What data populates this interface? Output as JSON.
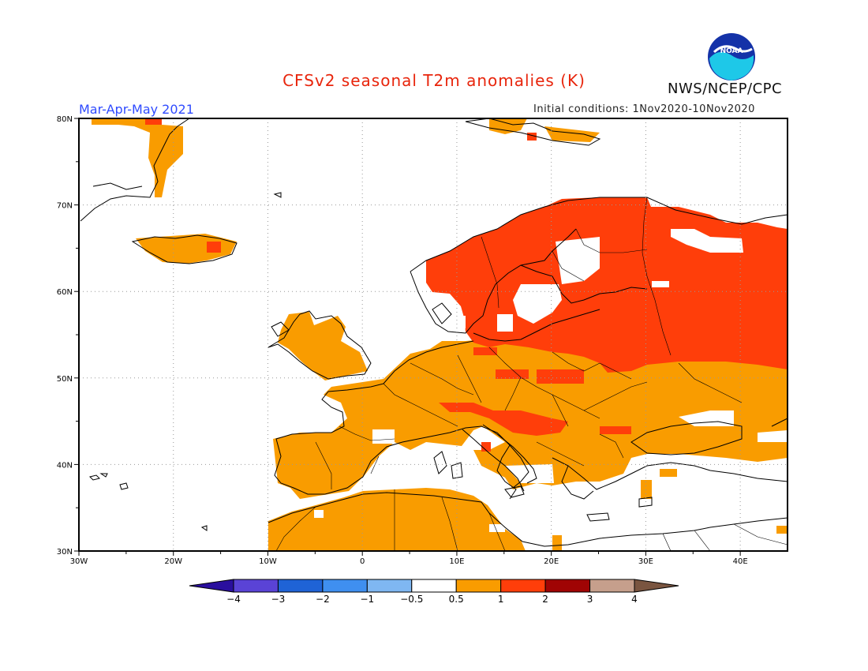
{
  "header": {
    "title": "CFSv2 seasonal T2m anomalies (K)",
    "season": "Mar-Apr-May 2021",
    "initial_conditions": "Initial conditions: 1Nov2020-10Nov2020",
    "agency": "NWS/NCEP/CPC",
    "logo_text": "NOAA"
  },
  "map": {
    "region": "Europe",
    "lon_range": [
      -30,
      45
    ],
    "lat_range": [
      30,
      80
    ],
    "lat_labels": [
      "80N",
      "70N",
      "60N",
      "50N",
      "40N",
      "30N"
    ],
    "lon_labels": [
      "30W",
      "20W",
      "10W",
      "0",
      "10E",
      "20E",
      "30E",
      "40E"
    ],
    "anomaly_regions": [
      {
        "name": "Scandinavia / Finland / NW Russia",
        "category": "1 to 2"
      },
      {
        "name": "Eastern Europe / Western Russia",
        "category": "1 to 2"
      },
      {
        "name": "Central Europe / Balkans",
        "category": "0.5 to 1"
      },
      {
        "name": "Iberia / France / British Isles",
        "category": "0.5 to 1"
      },
      {
        "name": "North Africa",
        "category": "0.5 to 1"
      },
      {
        "name": "Mediterranean Sea",
        "category": "-0.5 to 0.5"
      },
      {
        "name": "Atlantic Ocean",
        "category": "-0.5 to 0.5"
      }
    ]
  },
  "colorbar": {
    "labels": [
      "-4",
      "-3",
      "-2",
      "-1",
      "-0.5",
      "0.5",
      "1",
      "2",
      "3",
      "4"
    ],
    "colors": [
      "#2a0f9e",
      "#5a43d6",
      "#1f63d6",
      "#3f8ff0",
      "#7fb7f2",
      "#ffffff",
      "#f99c00",
      "#ff3e0a",
      "#a00404",
      "#c69f8c",
      "#7a5540"
    ]
  },
  "colors": {
    "land_light": "#f99c00",
    "land_strong": "#ff3e0a",
    "title": "#e8250c",
    "season": "#2f4bff"
  }
}
